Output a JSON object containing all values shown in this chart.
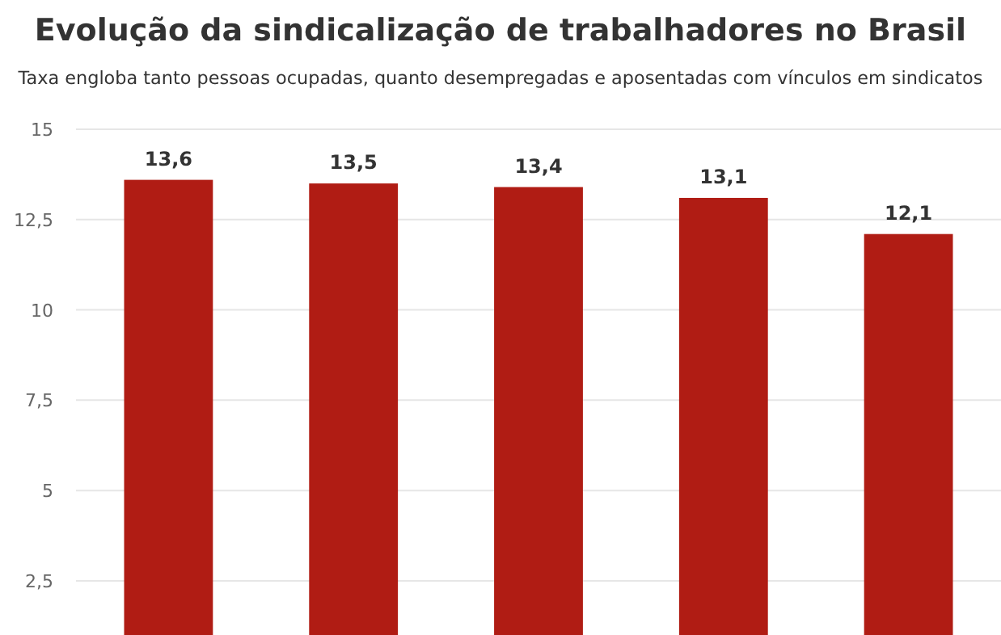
{
  "chart_data": {
    "type": "bar",
    "title": "Evolução da sindicalização de trabalhadores no Brasil",
    "subtitle": "Taxa engloba tanto pessoas ocupadas, quanto desempregadas e aposentadas com vínculos em sindicatos",
    "categories": [
      null,
      null,
      null,
      null,
      null
    ],
    "values": [
      13.6,
      13.5,
      13.4,
      13.1,
      12.1
    ],
    "color": "#b01c14",
    "ylim": [
      1,
      15
    ],
    "yticks": [
      {
        "value": 2.5,
        "label": "2,5"
      },
      5,
      {
        "value": 7.5,
        "label": "7,5"
      },
      10,
      {
        "value": 12.5,
        "label": "12,5"
      },
      15
    ],
    "value_labels": [
      "13,6",
      "13,5",
      "13,4",
      "13,1",
      "12,1"
    ],
    "grid": "y"
  }
}
